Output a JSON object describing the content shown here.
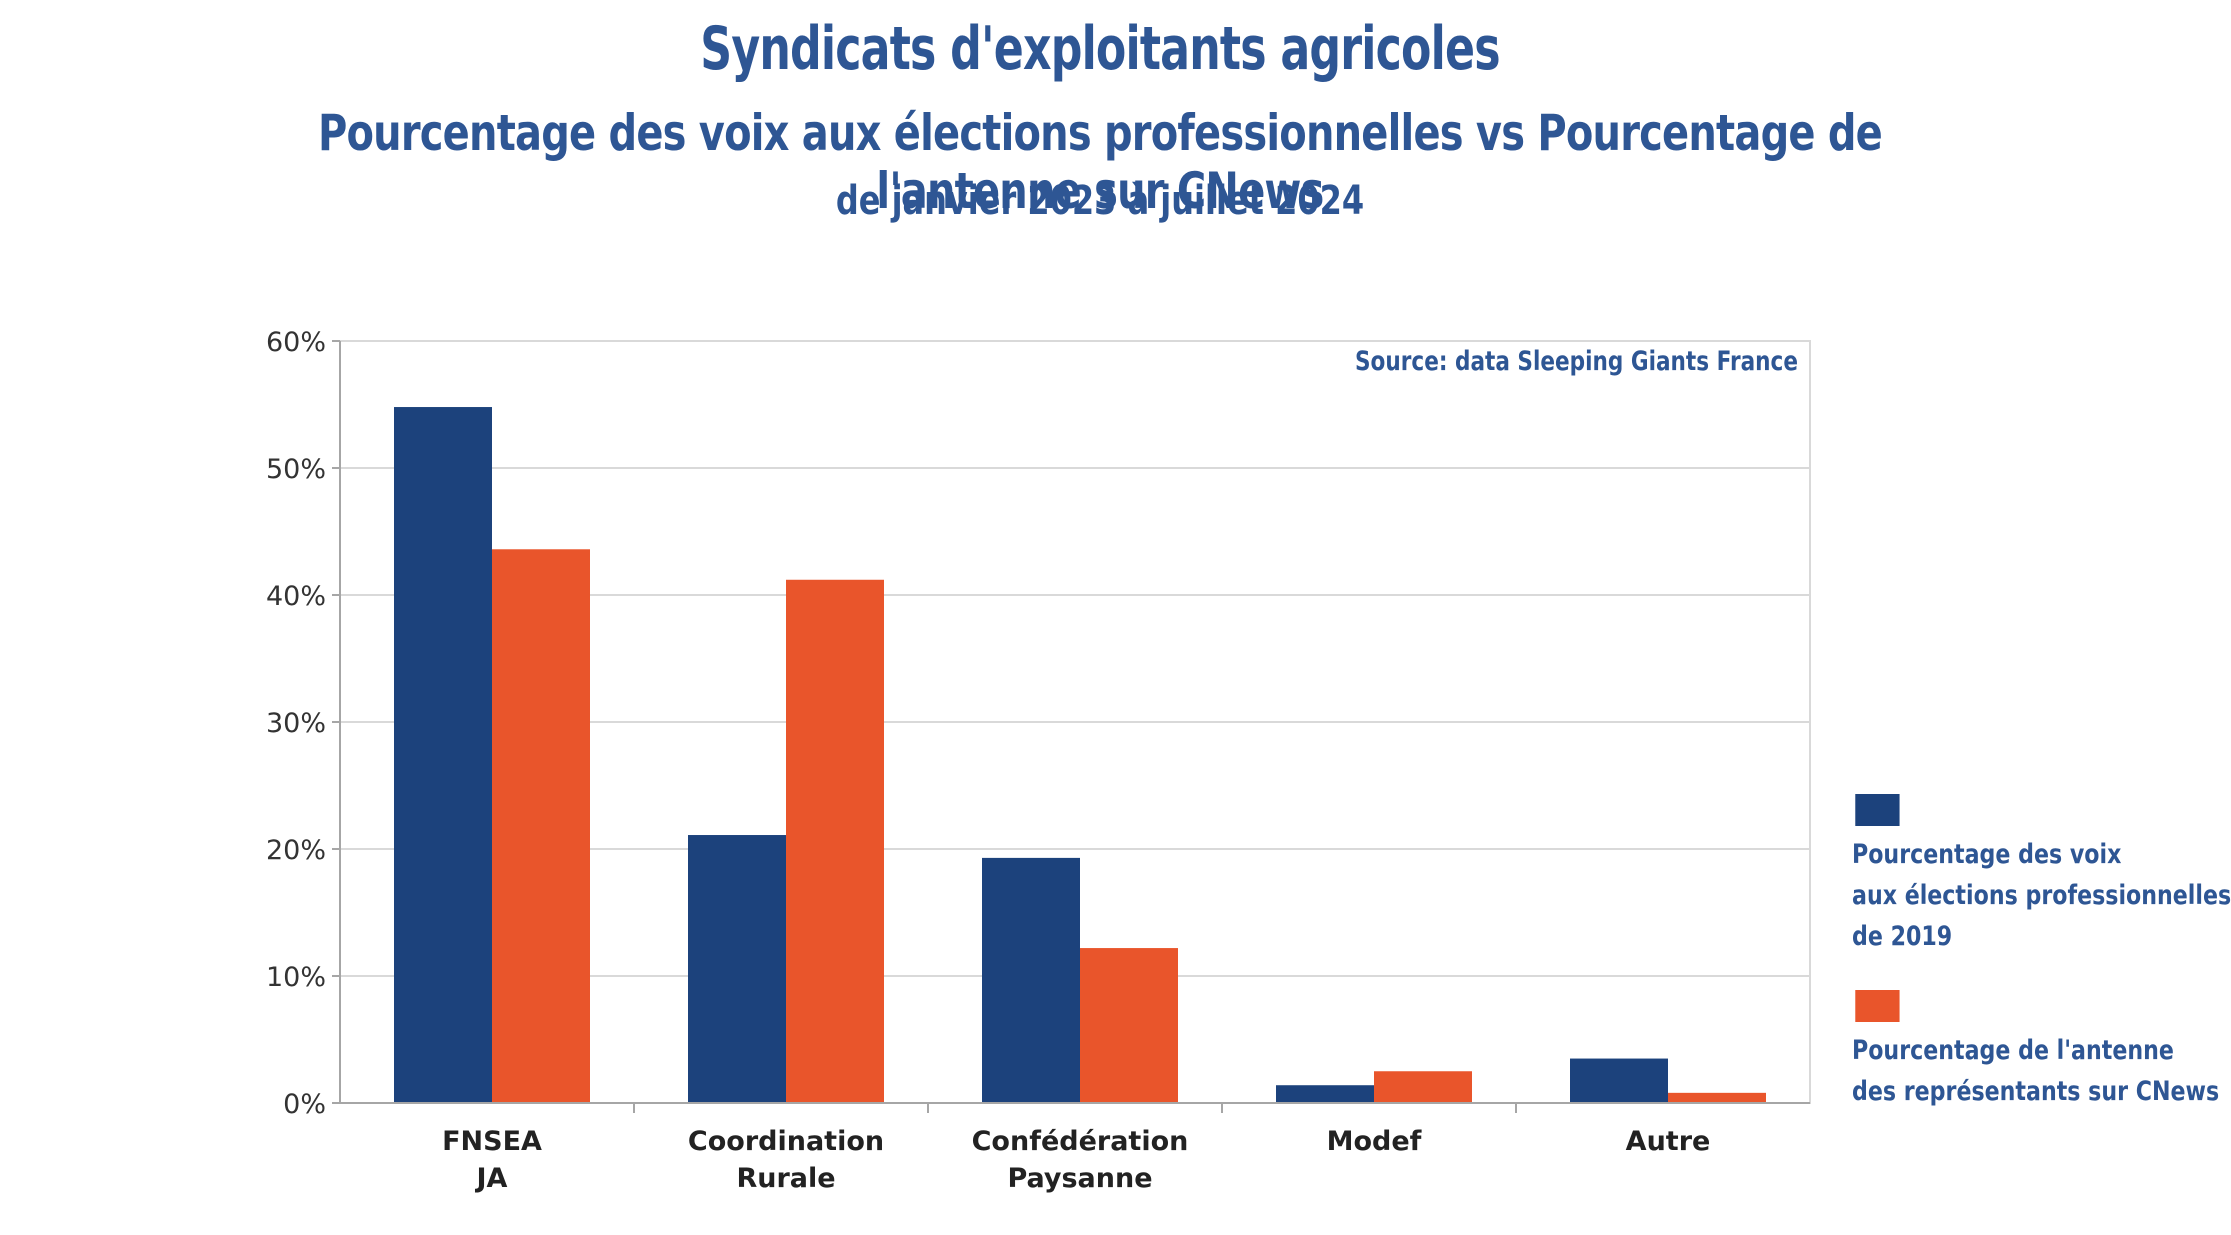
{
  "titles": {
    "title": "Syndicats d'exploitants agricoles",
    "subtitle": "Pourcentage des voix aux élections professionnelles vs Pourcentage de l'antenne sur CNews",
    "period": "de janvier 2023 à juillet 2024"
  },
  "source_note": "Source: data Sleeping Giants France",
  "colors": {
    "series1": "#1c427c",
    "series2": "#e9552b",
    "text": "#2e5694",
    "grid": "#d9d9d9",
    "axis": "#a6a6a6"
  },
  "chart_data": {
    "type": "bar",
    "categories": [
      [
        "FNSEA",
        "JA"
      ],
      [
        "Coordination",
        "Rurale"
      ],
      [
        "Confédération",
        "Paysanne"
      ],
      [
        "Modef"
      ],
      [
        "Autre"
      ]
    ],
    "series": [
      {
        "name": "Pourcentage des voix aux élections professionnelles de 2019",
        "legend_lines": [
          "Pourcentage des voix",
          "aux élections professionnelles",
          "de 2019"
        ],
        "values": [
          54.8,
          21.1,
          19.3,
          1.4,
          3.5
        ]
      },
      {
        "name": "Pourcentage de l'antenne des représentants sur CNews",
        "legend_lines": [
          "Pourcentage de l'antenne",
          "des représentants sur CNews"
        ],
        "values": [
          43.6,
          41.2,
          12.2,
          2.5,
          0.8
        ]
      }
    ],
    "ylim": [
      0,
      60
    ],
    "yticks": [
      0,
      10,
      20,
      30,
      40,
      50,
      60
    ],
    "ytick_labels": [
      "0%",
      "10%",
      "20%",
      "30%",
      "40%",
      "50%",
      "60%"
    ],
    "grid": true,
    "legend_position": "right"
  }
}
